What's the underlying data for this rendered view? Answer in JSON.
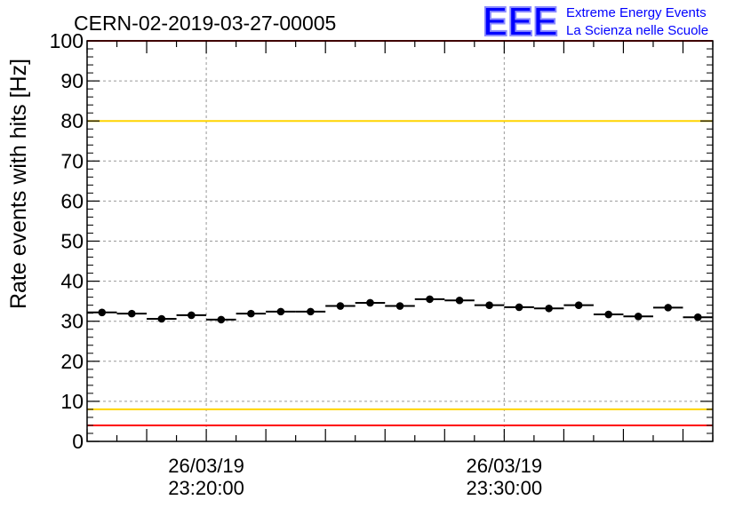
{
  "chart_data": {
    "type": "scatter",
    "title": "CERN-02-2019-03-27-00005",
    "ylabel": "Rate events with hits [Hz]",
    "xlabel": "",
    "ylim": [
      0,
      100
    ],
    "yticks": [
      0,
      10,
      20,
      30,
      40,
      50,
      60,
      70,
      80,
      90,
      100
    ],
    "xlim": [
      "2019-03-26 23:16:00",
      "2019-03-26 23:37:00"
    ],
    "x_tick_labels": [
      {
        "x": "2019-03-26 23:20:00",
        "date": "26/03/19",
        "time": "23:20:00"
      },
      {
        "x": "2019-03-26 23:30:00",
        "date": "26/03/19",
        "time": "23:30:00"
      }
    ],
    "grid": true,
    "bin_minutes": 1,
    "series": [
      {
        "x": [
          "2019-03-26 23:16:30",
          "2019-03-26 23:17:30",
          "2019-03-26 23:18:30",
          "2019-03-26 23:19:30",
          "2019-03-26 23:20:30",
          "2019-03-26 23:21:30",
          "2019-03-26 23:22:30",
          "2019-03-26 23:23:30",
          "2019-03-26 23:24:30",
          "2019-03-26 23:25:30",
          "2019-03-26 23:26:30",
          "2019-03-26 23:27:30",
          "2019-03-26 23:28:30",
          "2019-03-26 23:29:30",
          "2019-03-26 23:30:30",
          "2019-03-26 23:31:30",
          "2019-03-26 23:32:30",
          "2019-03-26 23:33:30",
          "2019-03-26 23:34:30",
          "2019-03-26 23:35:30",
          "2019-03-26 23:36:30"
        ],
        "values": [
          32.2,
          31.9,
          30.6,
          31.5,
          30.4,
          31.9,
          32.4,
          32.4,
          33.8,
          34.6,
          33.8,
          35.5,
          35.2,
          34.0,
          33.5,
          33.2,
          34.0,
          31.7,
          31.2,
          33.4,
          31.0
        ]
      }
    ],
    "reference_lines": [
      {
        "value": 100,
        "color": "#ff0000"
      },
      {
        "value": 80,
        "color": "#ffd400"
      },
      {
        "value": 8,
        "color": "#ffd400"
      },
      {
        "value": 4,
        "color": "#ff0000"
      }
    ]
  },
  "logo": {
    "mark": "EEE",
    "line1": "Extreme Energy Events",
    "line2": "La Scienza nelle Scuole",
    "color": "#0000ff"
  }
}
